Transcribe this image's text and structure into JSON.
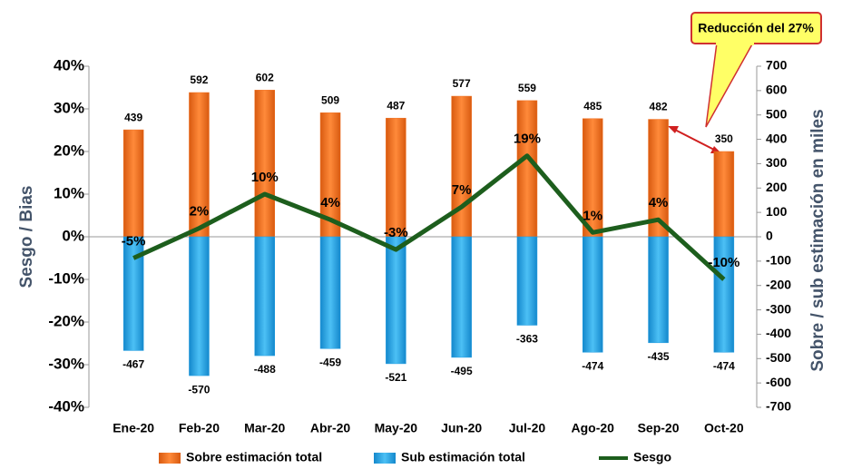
{
  "chart_data": {
    "type": "bar",
    "y_label": "Sesgo / Bias",
    "y2_label": "Sobre / sub estimación en miles",
    "annotation": "Reducción del 27%",
    "categories": [
      "Ene-20",
      "Feb-20",
      "Mar-20",
      "Abr-20",
      "May-20",
      "Jun-20",
      "Jul-20",
      "Ago-20",
      "Sep-20",
      "Oct-20"
    ],
    "series": [
      {
        "name": "Sobre estimación total",
        "type": "bar",
        "axis": "y2",
        "color": "#f07020",
        "values": [
          439,
          592,
          602,
          509,
          487,
          577,
          559,
          485,
          482,
          350
        ]
      },
      {
        "name": "Sub estimación total",
        "type": "bar",
        "axis": "y2",
        "color": "#1e9be0",
        "values": [
          -467,
          -570,
          -488,
          -459,
          -521,
          -495,
          -363,
          -474,
          -435,
          -474
        ]
      },
      {
        "name": "Sesgo",
        "type": "line",
        "axis": "y",
        "color": "#1d5e1d",
        "values": [
          -5,
          2,
          10,
          4,
          -3,
          7,
          19,
          1,
          4,
          -10
        ],
        "value_labels": [
          "-5%",
          "2%",
          "10%",
          "4%",
          "-3%",
          "7%",
          "19%",
          "1%",
          "4%",
          "-10%"
        ]
      }
    ],
    "ylim": [
      -40,
      40
    ],
    "yticks": [
      {
        "value": -40,
        "label": "-40%"
      },
      {
        "value": -30,
        "label": "-30%"
      },
      {
        "value": -20,
        "label": "-20%"
      },
      {
        "value": -10,
        "label": "-10%"
      },
      {
        "value": 0,
        "label": "0%"
      },
      {
        "value": 10,
        "label": "10%"
      },
      {
        "value": 20,
        "label": "20%"
      },
      {
        "value": 30,
        "label": "30%"
      },
      {
        "value": 40,
        "label": "40%"
      }
    ],
    "y2lim": [
      -700,
      700
    ],
    "y2ticks": [
      -700,
      -600,
      -500,
      -400,
      -300,
      -200,
      -100,
      0,
      100,
      200,
      300,
      400,
      500,
      600,
      700
    ]
  }
}
